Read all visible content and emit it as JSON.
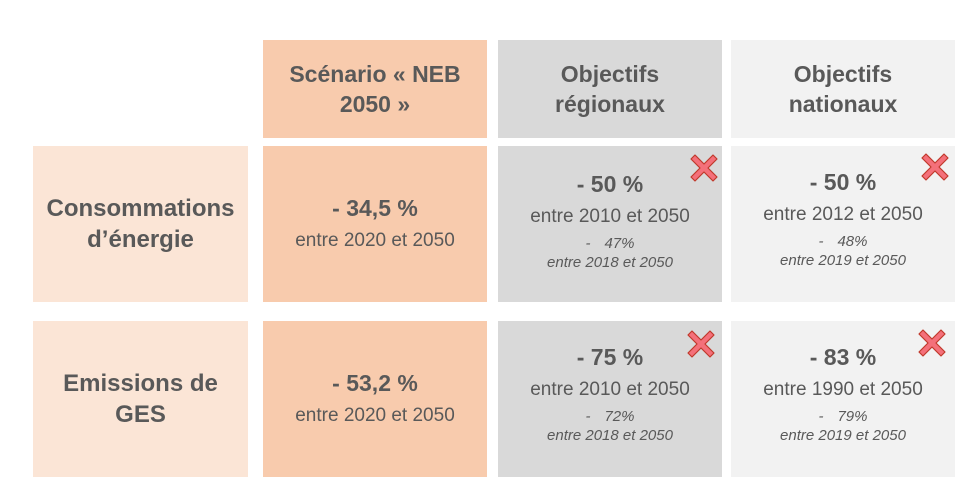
{
  "headers": {
    "scenario": "Scénario « NEB 2050 »",
    "regional": "Objectifs régionaux",
    "national": "Objectifs nationaux"
  },
  "rows": [
    {
      "label": "Consommations d’énergie",
      "scenario": {
        "value": "- 34,5 %",
        "period": "entre 2020 et 2050"
      },
      "regional": {
        "value": "- 50 %",
        "period": "entre 2010 et 2050",
        "note_dash": "-",
        "note_value": "47%",
        "note_period": "entre 2018 et 2050"
      },
      "national": {
        "value": "- 50 %",
        "period": "entre 2012 et 2050",
        "note_dash": "-",
        "note_value": "48%",
        "note_period": "entre 2019 et 2050"
      }
    },
    {
      "label": "Emissions de GES",
      "scenario": {
        "value": "- 53,2 %",
        "period": "entre 2020 et 2050"
      },
      "regional": {
        "value": "- 75 %",
        "period": "entre 2010 et 2050",
        "note_dash": "-",
        "note_value": "72%",
        "note_period": "entre 2018 et 2050"
      },
      "national": {
        "value": "- 83 %",
        "period": "entre 1990 et 2050",
        "note_dash": "-",
        "note_value": "79%",
        "note_period": "entre 2019 et 2050"
      }
    }
  ],
  "icons": {
    "cross": "red-cross-icon"
  },
  "colors": {
    "peach_light": "#fbe5d6",
    "peach": "#f8cbad",
    "grey": "#d9d9d9",
    "grey_light": "#ededed",
    "cross_fill": "#f4707a",
    "cross_stroke": "#c0392b",
    "text": "#595959"
  }
}
